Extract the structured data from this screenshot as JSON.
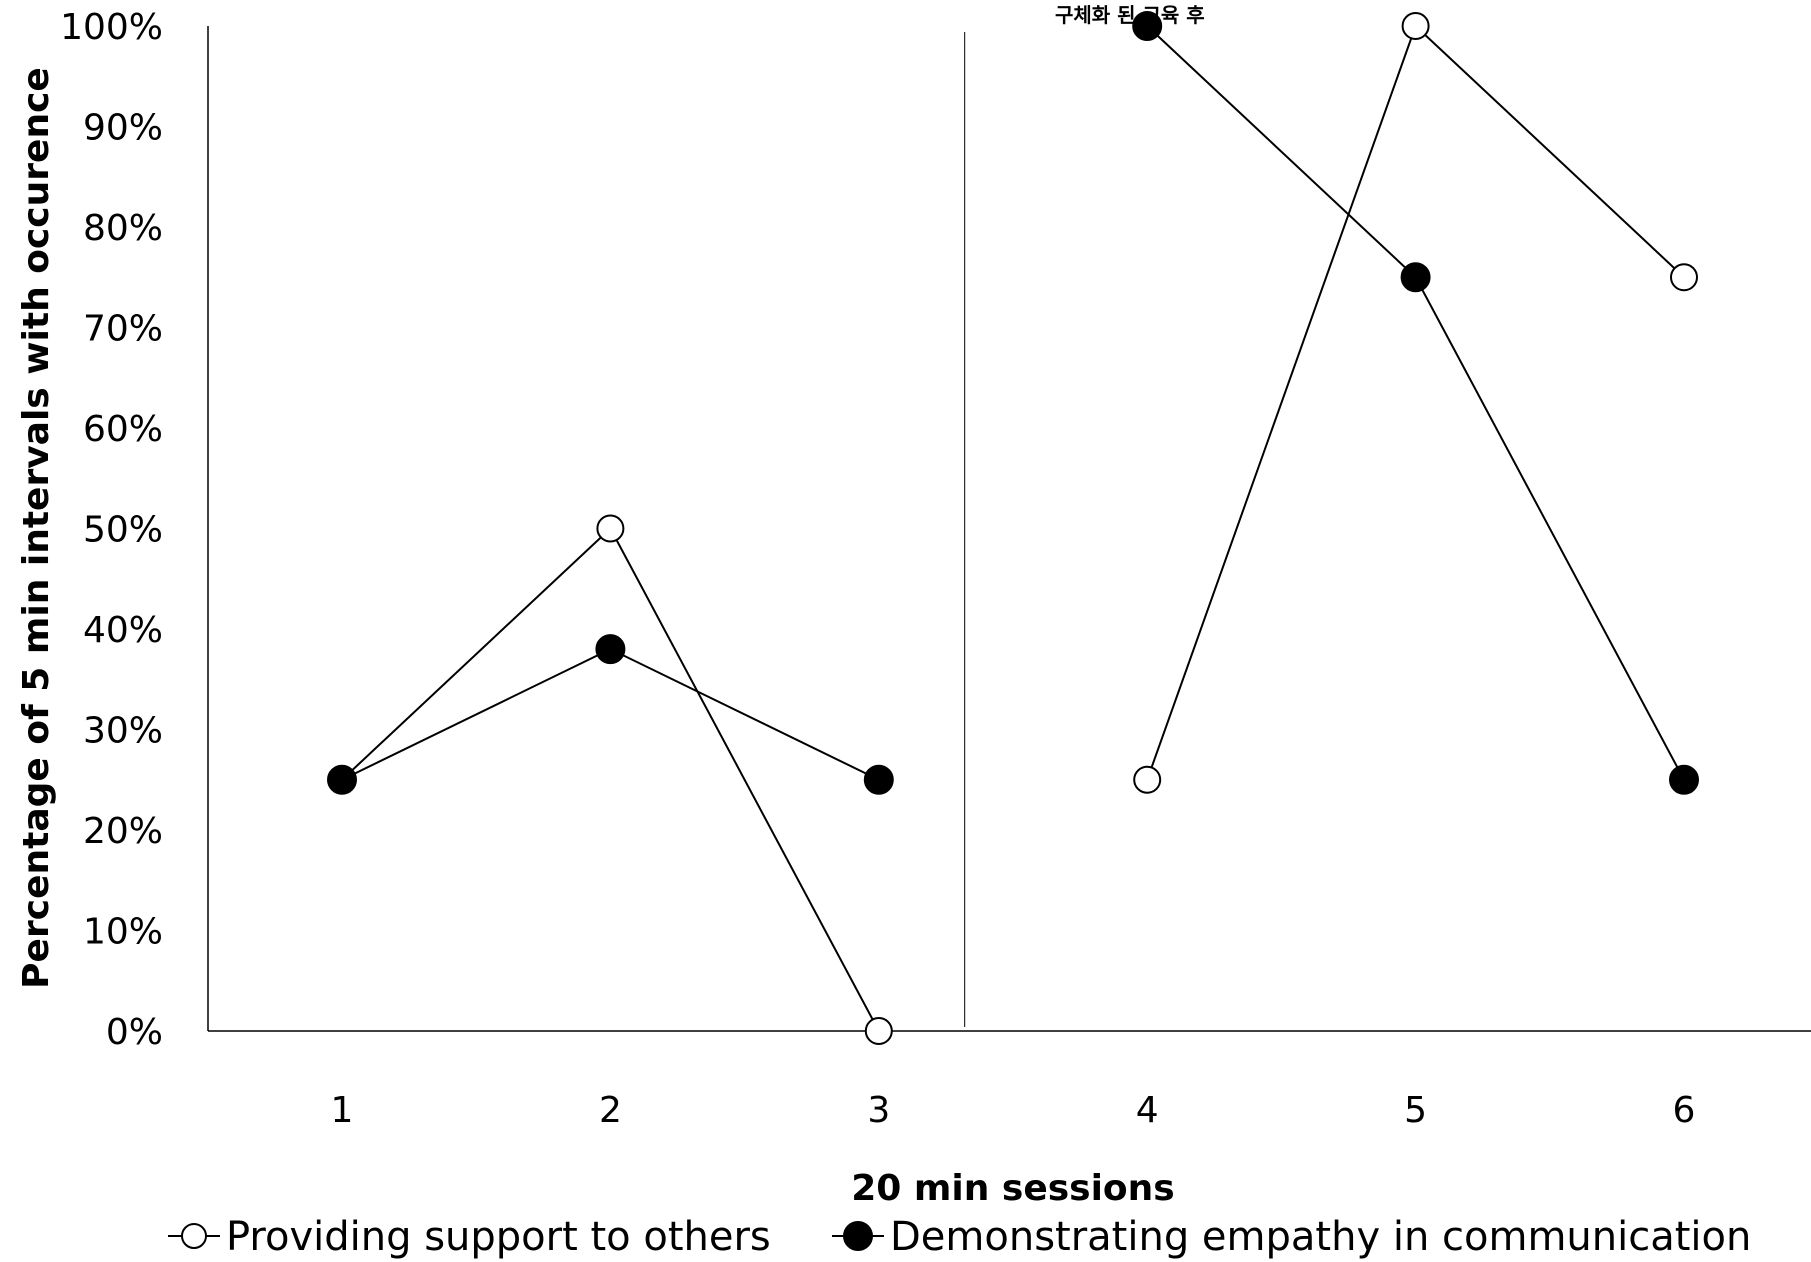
{
  "chart_data": {
    "type": "line",
    "title": "",
    "xlabel": "20 min sessions",
    "ylabel": "Percentage of 5 min intervals with occurence",
    "ylim": [
      0,
      100
    ],
    "y_ticks": [
      "0%",
      "10%",
      "20%",
      "30%",
      "40%",
      "50%",
      "60%",
      "70%",
      "80%",
      "90%",
      "100%"
    ],
    "x": [
      1,
      2,
      3,
      4,
      5,
      6
    ],
    "phase_change_after": 3,
    "phase_annotation": "구체화 된 교육 후",
    "grid": false,
    "legend_position": "bottom",
    "series": [
      {
        "name": "Providing support to others",
        "marker": "open-circle",
        "segments": [
          {
            "x": [
              1,
              2,
              3
            ],
            "values": [
              25,
              50,
              0
            ]
          },
          {
            "x": [
              4,
              5,
              6
            ],
            "values": [
              25,
              100,
              75
            ]
          }
        ]
      },
      {
        "name": "Demonstrating empathy in communication",
        "marker": "filled-circle",
        "segments": [
          {
            "x": [
              1,
              2,
              3
            ],
            "values": [
              25,
              38,
              25
            ]
          },
          {
            "x": [
              4,
              5,
              6
            ],
            "values": [
              100,
              75,
              25
            ]
          }
        ]
      }
    ]
  }
}
